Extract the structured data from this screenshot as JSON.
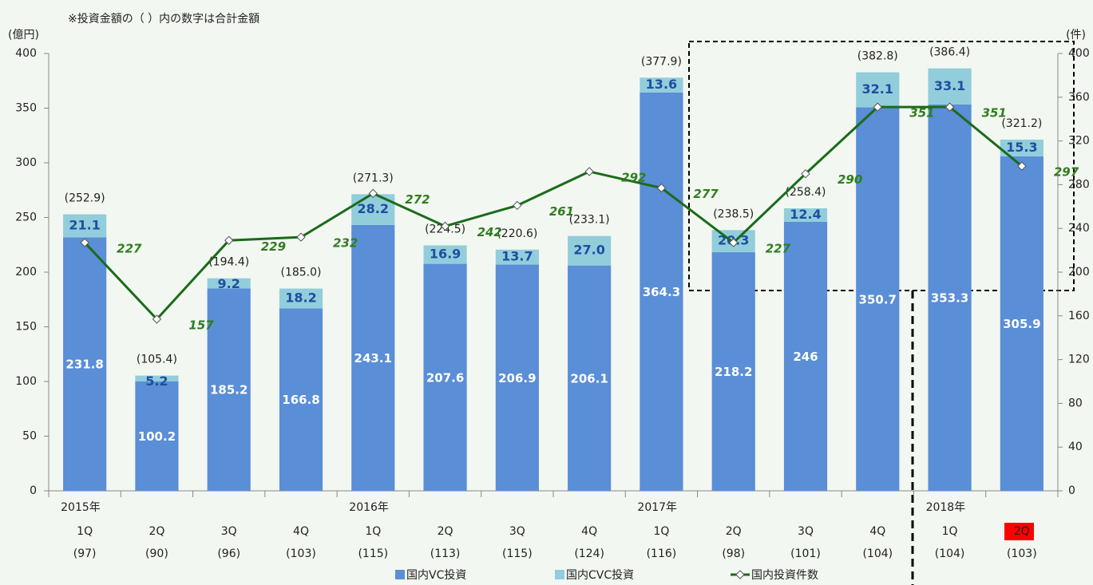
{
  "chart_data": {
    "type": "bar",
    "note": "※投資金額の（ ）内の数字は合計金額",
    "y_label": "(億円)",
    "y2_label": "(件)",
    "categories": [
      "1Q",
      "2Q",
      "3Q",
      "4Q",
      "1Q",
      "2Q",
      "3Q",
      "4Q",
      "1Q",
      "2Q",
      "3Q",
      "4Q",
      "1Q",
      "2Q"
    ],
    "years": [
      "2015年",
      null,
      null,
      null,
      "2016年",
      null,
      null,
      null,
      "2017年",
      null,
      null,
      null,
      "2018年",
      null
    ],
    "count_labels": [
      "(97)",
      "(90)",
      "(96)",
      "(103)",
      "(115)",
      "(113)",
      "(115)",
      "(124)",
      "(116)",
      "(98)",
      "(101)",
      "(104)",
      "(104)",
      "(103)"
    ],
    "series": [
      {
        "name": "国内VC投資",
        "color": "#5a8ed6",
        "stacked": true,
        "values": [
          231.8,
          100.2,
          185.2,
          166.8,
          243.1,
          207.6,
          206.9,
          206.1,
          364.3,
          218.2,
          246,
          350.7,
          353.3,
          305.9
        ]
      },
      {
        "name": "国内CVC投資",
        "color": "#92cddc",
        "stacked": true,
        "values": [
          21.1,
          5.2,
          9.2,
          18.2,
          28.2,
          16.9,
          13.7,
          27.0,
          13.6,
          20.3,
          12.4,
          32.1,
          33.1,
          15.3
        ],
        "value_labels": [
          "21.1",
          "5.2",
          "9.2",
          "18.2",
          "28.2",
          "16.9",
          "13.7",
          "27.0",
          "13.6",
          "20.3",
          "12.4",
          "32.1",
          "33.1",
          "15.3"
        ]
      },
      {
        "name": "国内投資件数",
        "color": "#1a6b1a",
        "axis": "y2",
        "kind": "line",
        "values": [
          227,
          157,
          229,
          232,
          272,
          242,
          261,
          292,
          277,
          227,
          290,
          351,
          351,
          297
        ]
      }
    ],
    "totals": {
      "values": [
        252.9,
        105.4,
        194.4,
        185.0,
        271.3,
        224.5,
        220.6,
        233.1,
        377.9,
        238.5,
        258.4,
        382.8,
        386.4,
        321.2
      ],
      "value_labels": [
        "(252.9)",
        "(105.4)",
        "(194.4)",
        "(185.0)",
        "(271.3)",
        "(224.5)",
        "(220.6)",
        "(233.1)",
        "(377.9)",
        "(238.5)",
        "(258.4)",
        "(382.8)",
        "(386.4)",
        "(321.2)"
      ]
    },
    "ylim": [
      0,
      400
    ],
    "yticks": [
      0,
      50,
      100,
      150,
      200,
      250,
      300,
      350,
      400
    ],
    "y2lim": [
      0,
      400
    ],
    "y2ticks": [
      0,
      40,
      80,
      120,
      160,
      200,
      240,
      280,
      320,
      360,
      400
    ],
    "legend": "bottom"
  }
}
